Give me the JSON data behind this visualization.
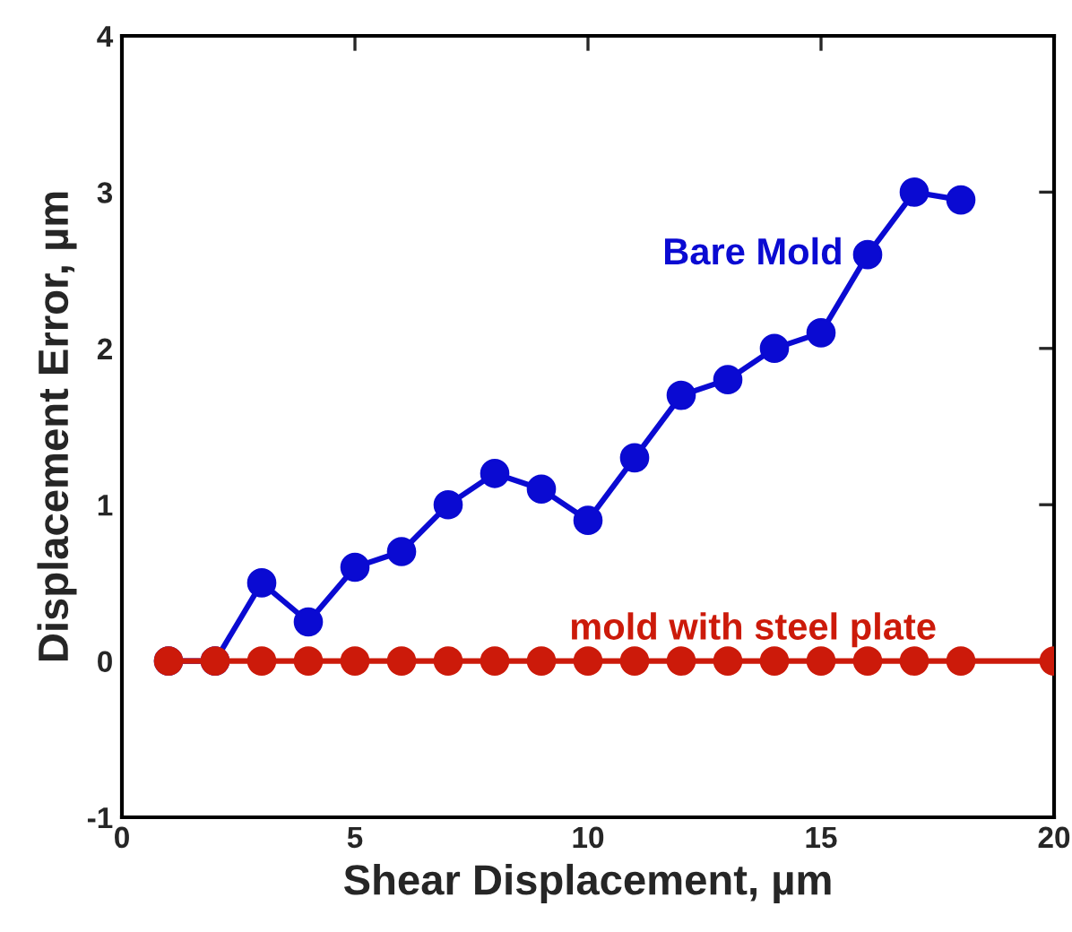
{
  "chart_data": {
    "type": "line",
    "xlabel": "Shear Displacement, µm",
    "ylabel": "Displacement Error, µm",
    "xlim": [
      0,
      20
    ],
    "xticks": [
      0,
      5,
      10,
      15,
      20
    ],
    "ylim": [
      -1,
      4
    ],
    "yticks": [
      {
        "value": -1,
        "label": "-1"
      },
      0,
      1,
      2,
      3,
      4
    ],
    "grid": false,
    "legend": false,
    "marker": "circle",
    "line_style": "solid",
    "series": [
      {
        "name": "Bare Mold",
        "color": "#0a0ad2",
        "x": [
          1,
          2,
          3,
          4,
          5,
          6,
          7,
          8,
          9,
          10,
          11,
          12,
          13,
          14,
          15,
          16,
          17,
          18
        ],
        "values": [
          0,
          0,
          0.5,
          0.25,
          0.6,
          0.7,
          1.0,
          1.2,
          1.1,
          0.9,
          1.3,
          1.7,
          1.8,
          2.0,
          2.1,
          2.6,
          3.0,
          2.95
        ]
      },
      {
        "name": "mold with steel plate",
        "color": "#cc1a0a",
        "x": [
          1,
          2,
          3,
          4,
          5,
          6,
          7,
          8,
          9,
          10,
          11,
          12,
          13,
          14,
          15,
          16,
          17,
          18,
          20
        ],
        "values": [
          0,
          0,
          0,
          0,
          0,
          0,
          0,
          0,
          0,
          0,
          0,
          0,
          0,
          0,
          0,
          0,
          0,
          0,
          0
        ]
      }
    ]
  }
}
